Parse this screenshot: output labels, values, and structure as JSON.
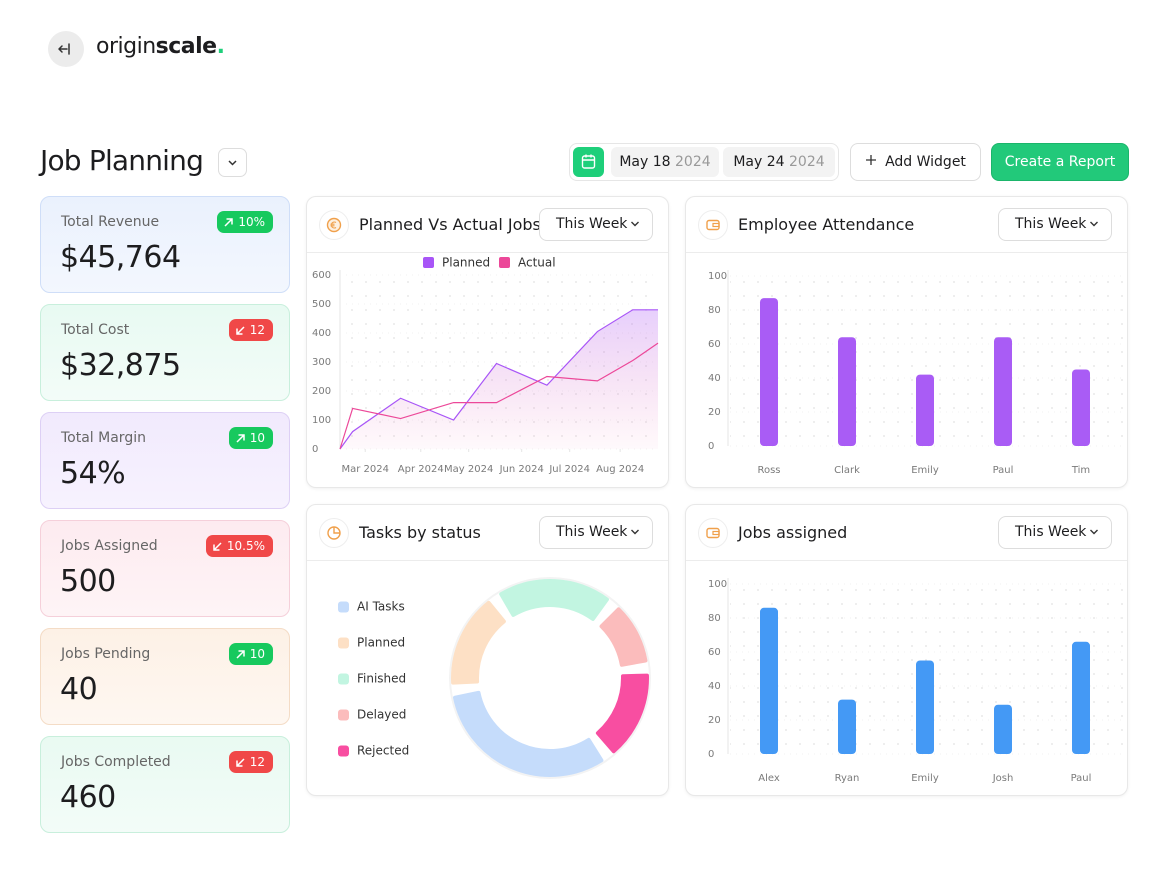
{
  "brand": {
    "name": "origin",
    "name_bold": "scale",
    "dot": "."
  },
  "page": {
    "title": "Job Planning"
  },
  "toolbar": {
    "date_from": {
      "day": "May 18",
      "year": "2024"
    },
    "date_to": {
      "day": "May 24",
      "year": "2024"
    },
    "add_widget": "Add Widget",
    "create_report": "Create a Report"
  },
  "kpis": [
    {
      "label": "Total Revenue",
      "value": "$45,764",
      "change": "10%",
      "trend": "up"
    },
    {
      "label": "Total Cost",
      "value": "$32,875",
      "change": "12",
      "trend": "down"
    },
    {
      "label": "Total Margin",
      "value": "54%",
      "change": "10",
      "trend": "up"
    },
    {
      "label": "Jobs Assigned",
      "value": "500",
      "change": "10.5%",
      "trend": "down"
    },
    {
      "label": "Jobs Pending",
      "value": "40",
      "change": "10",
      "trend": "up"
    },
    {
      "label": "Jobs Completed",
      "value": "460",
      "change": "12",
      "trend": "down"
    }
  ],
  "chart_data": [
    {
      "type": "line",
      "title": "Planned Vs Actual Jobs",
      "period": "This Week",
      "x": [
        2.5,
        2.75,
        3.7,
        4.75,
        5.6,
        6.6,
        7.6,
        8.3,
        8.8
      ],
      "xlim": [
        2.5,
        8.8
      ],
      "xticks": [
        {
          "value": 3,
          "label": "Mar 2024"
        },
        {
          "value": 4.1,
          "label": "Apr 2024"
        },
        {
          "value": 5.05,
          "label": "May 2024"
        },
        {
          "value": 6.1,
          "label": "Jun 2024"
        },
        {
          "value": 7.05,
          "label": "Jul 2024"
        },
        {
          "value": 8.05,
          "label": "Aug 2024"
        }
      ],
      "ylim": [
        0,
        600
      ],
      "yticks": [
        0,
        100,
        200,
        300,
        400,
        500,
        600
      ],
      "legend": "top",
      "series": [
        {
          "name": "Planned",
          "color": "#a855f7",
          "values": [
            0,
            60,
            175,
            100,
            295,
            220,
            405,
            480,
            480
          ]
        },
        {
          "name": "Actual",
          "color": "#ec4899",
          "values": [
            0,
            140,
            105,
            160,
            160,
            250,
            235,
            305,
            365
          ]
        }
      ]
    },
    {
      "type": "bar",
      "title": "Employee Attendance",
      "period": "This Week",
      "categories": [
        "Ross",
        "Clark",
        "Emily",
        "Paul",
        "Tim"
      ],
      "values": [
        87,
        64,
        42,
        64,
        45
      ],
      "color": "#a95cf5",
      "ylim": [
        0,
        100
      ],
      "yticks": [
        0,
        20,
        40,
        60,
        80,
        100
      ]
    },
    {
      "type": "pie",
      "title": "Tasks by status",
      "period": "This Week",
      "categories": [
        "AI Tasks",
        "Planned",
        "Finished",
        "Delayed",
        "Rejected"
      ],
      "values": [
        35,
        17,
        21,
        11,
        16
      ],
      "colors": [
        "#c5dcfb",
        "#fde0c5",
        "#c2f5e1",
        "#fbbcbc",
        "#f84ea1"
      ]
    },
    {
      "type": "bar",
      "title": "Jobs assigned",
      "period": "This Week",
      "categories": [
        "Alex",
        "Ryan",
        "Emily",
        "Josh",
        "Paul"
      ],
      "values": [
        86,
        32,
        55,
        29,
        66
      ],
      "color": "#4499f5",
      "ylim": [
        0,
        100
      ],
      "yticks": [
        0,
        20,
        40,
        60,
        80,
        100
      ]
    }
  ]
}
